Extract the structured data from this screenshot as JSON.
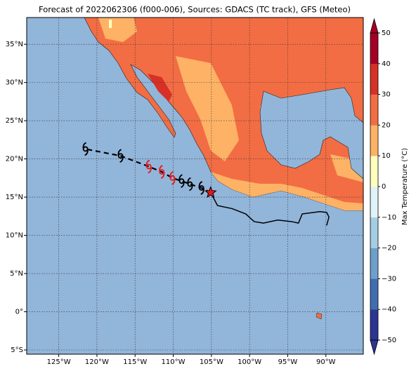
{
  "title": "Forecast of 2022062306 (f000-006), Sources: GDACS (TC track), GFS (Meteo)",
  "map": {
    "extent": {
      "lon": [
        -129.2,
        -85.1
      ],
      "lat": [
        -5.55,
        38.5
      ]
    },
    "lon_ticks": [
      {
        "value": -125,
        "label": "125°W"
      },
      {
        "value": -120,
        "label": "120°W"
      },
      {
        "value": -115,
        "label": "115°W"
      },
      {
        "value": -110,
        "label": "110°W"
      },
      {
        "value": -105,
        "label": "105°W"
      },
      {
        "value": -100,
        "label": "100°W"
      },
      {
        "value": -95,
        "label": "95°W"
      },
      {
        "value": -90,
        "label": "90°W"
      }
    ],
    "lat_ticks": [
      {
        "value": 35,
        "label": "35°N"
      },
      {
        "value": 30,
        "label": "30°N"
      },
      {
        "value": 25,
        "label": "25°N"
      },
      {
        "value": 20,
        "label": "20°N"
      },
      {
        "value": 15,
        "label": "15°N"
      },
      {
        "value": 10,
        "label": "10°N"
      },
      {
        "value": 5,
        "label": "5°N"
      },
      {
        "value": 0,
        "label": "0°"
      },
      {
        "value": -5,
        "label": "5°S"
      }
    ]
  },
  "track": {
    "current": {
      "lon": -105.1,
      "lat": 15.6,
      "color": "#e41a1c"
    },
    "past": {
      "lon": [
        -104.2,
        -102.3,
        -100.5,
        -99.4,
        -98.2,
        -96.3,
        -94.5,
        -93.6,
        -93.1,
        -90.8,
        -89.9,
        -89.6,
        -89.9
      ],
      "lat": [
        13.9,
        13.5,
        12.8,
        11.8,
        11.6,
        12.0,
        11.8,
        11.6,
        12.8,
        13.1,
        13.0,
        12.4,
        11.3
      ]
    },
    "symbols": [
      {
        "lon": -106.3,
        "lat": 16.2,
        "color": "#000000"
      },
      {
        "lon": -107.8,
        "lat": 16.7,
        "color": "#000000"
      },
      {
        "lon": -108.9,
        "lat": 17.1,
        "color": "#000000"
      },
      {
        "lon": -110.1,
        "lat": 17.5,
        "color": "#e41a1c"
      },
      {
        "lon": -111.5,
        "lat": 18.3,
        "color": "#e41a1c"
      },
      {
        "lon": -113.2,
        "lat": 19.0,
        "color": "#e41a1c"
      },
      {
        "lon": -116.9,
        "lat": 20.4,
        "color": "#000000"
      },
      {
        "lon": -121.5,
        "lat": 21.3,
        "color": "#000000"
      }
    ]
  },
  "colorbar": {
    "label": "Max Temperature (°C)",
    "range": [
      -50,
      50
    ],
    "colors": [
      "#2c3592",
      "#3f6db0",
      "#6d9fcb",
      "#a3cde3",
      "#e0f3f8",
      "#fefebd",
      "#fdb266",
      "#f26d43",
      "#d73027",
      "#a50026"
    ],
    "ticks": [
      50,
      40,
      30,
      20,
      10,
      0,
      {
        "value": -10,
        "label": "−10"
      },
      {
        "value": -20,
        "label": "−20"
      },
      {
        "value": -30,
        "label": "−30"
      },
      {
        "value": -40,
        "label": "−40"
      },
      {
        "value": -50,
        "label": "−50"
      }
    ]
  }
}
